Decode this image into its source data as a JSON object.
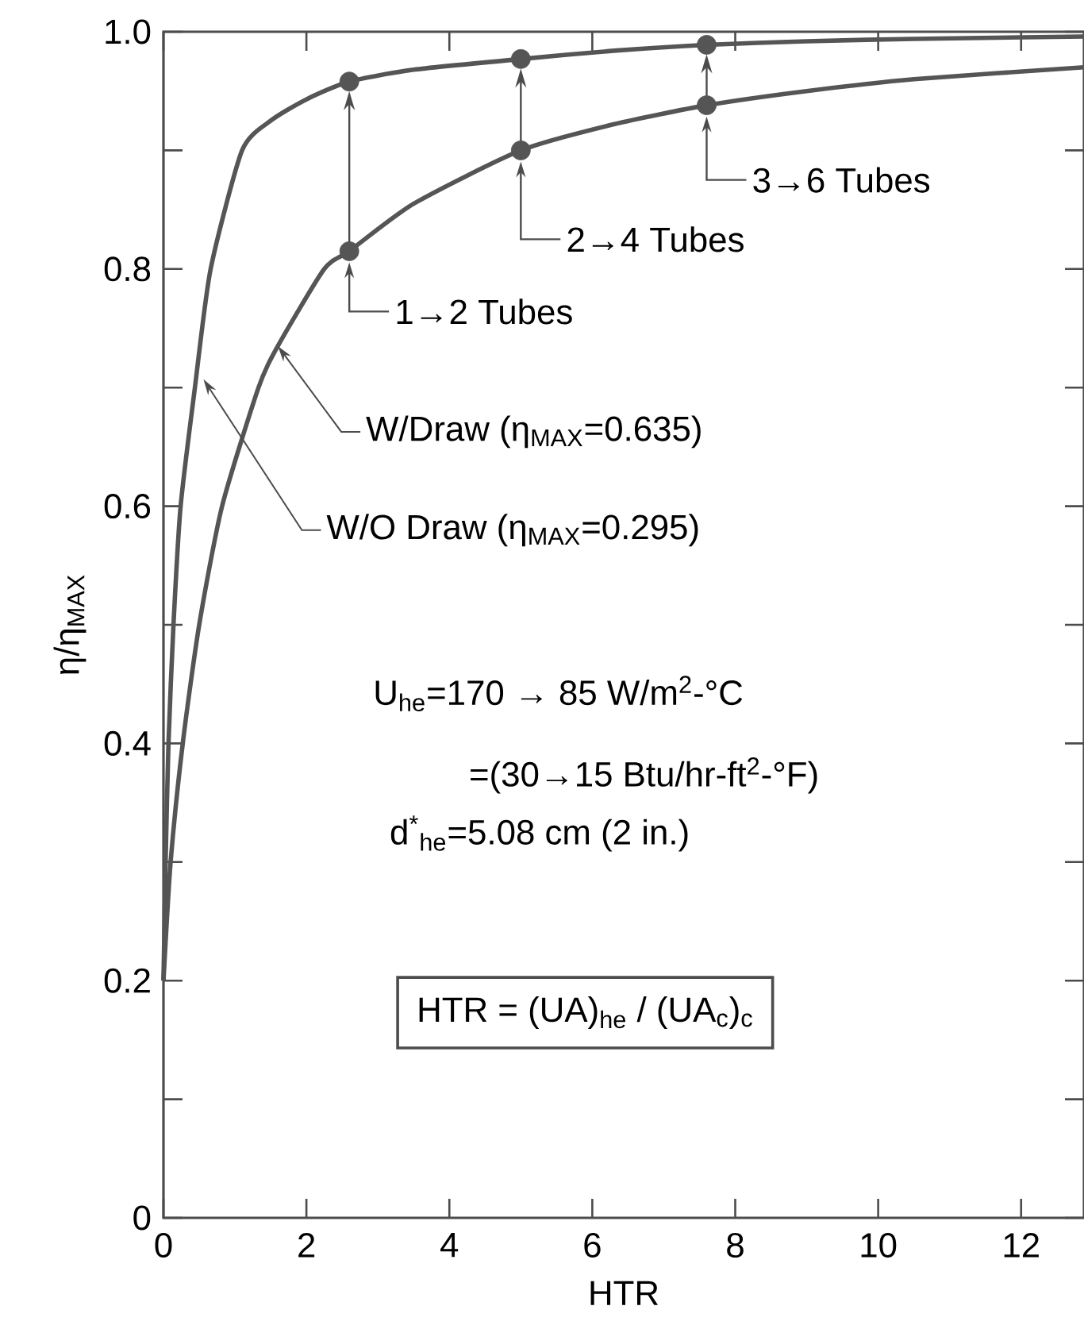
{
  "chart_data": {
    "type": "line",
    "xlabel": "HTR",
    "ylabel": "η/η$_{MAX}$",
    "xlim": [
      0,
      12.88
    ],
    "ylim": [
      0,
      1
    ],
    "xticks": [
      0,
      2,
      4,
      6,
      8,
      10,
      12
    ],
    "yticks": [
      0,
      {
        "value": 0.1,
        "label": null
      },
      0.2,
      {
        "value": 0.3,
        "label": null
      },
      0.4,
      {
        "value": 0.5,
        "label": null
      },
      0.6,
      {
        "value": 0.7,
        "label": null
      },
      0.8,
      {
        "value": 0.9,
        "label": null
      },
      {
        "value": 1,
        "label": "1.0"
      }
    ],
    "grid": false,
    "line_style": "solid",
    "series": [
      {
        "color": "#555555",
        "x": [
          0,
          0.03,
          0.07,
          0.14,
          0.24,
          0.44,
          0.66,
          1.1,
          1.5,
          2.0,
          2.6,
          3.5,
          5,
          6.3,
          7.6,
          9,
          10.5,
          12.88
        ],
        "values": [
          0.2,
          0.3,
          0.4,
          0.5,
          0.6,
          0.7,
          0.8,
          0.9,
          0.925,
          0.943,
          0.958,
          0.968,
          0.977,
          0.984,
          0.989,
          0.992,
          0.994,
          0.996
        ]
      },
      {
        "color": "#555555",
        "x": [
          0,
          0.1,
          0.27,
          0.5,
          0.82,
          1.33,
          1.6,
          2.25,
          2.6,
          3.5,
          5,
          6.3,
          7.6,
          9,
          10.5,
          12.88
        ],
        "values": [
          0.2,
          0.3,
          0.4,
          0.5,
          0.6,
          0.7,
          0.735,
          0.8,
          0.815,
          0.855,
          0.9,
          0.922,
          0.938,
          0.95,
          0.96,
          0.97
        ]
      },
      {
        "type": "scatter",
        "color": "#555555",
        "x": [
          2.6,
          5,
          7.6
        ],
        "values": [
          0.958,
          0.977,
          0.989
        ]
      },
      {
        "type": "scatter",
        "color": "#555555",
        "x": [
          2.6,
          5,
          7.6
        ],
        "values": [
          0.815,
          0.9,
          0.938
        ]
      }
    ],
    "annotations": [
      {
        "text": "1→2 Tubes",
        "x": 2.6,
        "y": 0.815
      },
      {
        "text": "2→4 Tubes",
        "x": 5,
        "y": 0.9
      },
      {
        "text": "3→6 Tubes",
        "x": 7.6,
        "y": 0.938
      },
      {
        "text": "W/Draw (η$_{MAX}$=0.635)",
        "x": 1.6,
        "y": 0.735
      },
      {
        "text": "W/O Draw (η$_{MAX}$=0.295)",
        "x": 0.56,
        "y": 0.707
      },
      "U$_{he}$=170 → 85 W/m$^{2}$-°C",
      "=(30→15 Btu/hr-ft$^{2}$-°F)",
      "d$^{*}$$_{he}$=5.08 cm (2 in.)",
      "HTR = (UA)$_{he}$ / (UA$_{c}$)$_{c}$"
    ]
  }
}
